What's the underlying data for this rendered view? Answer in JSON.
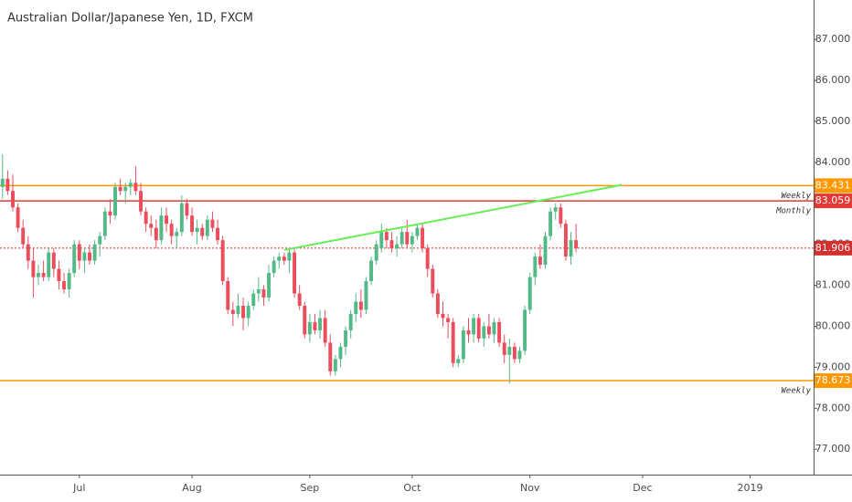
{
  "chart_data": {
    "type": "candlestick",
    "title": "Australian Dollar/Japanese Yen, 1D, FXCM",
    "up_color": "#53b987",
    "down_color": "#eb4d5c",
    "xlim": [
      -0.5,
      158.4
    ],
    "xticks": [
      {
        "value": 15,
        "label": "Jul"
      },
      {
        "value": 37,
        "label": "Aug"
      },
      {
        "value": 60,
        "label": "Sep"
      },
      {
        "value": 80,
        "label": "Oct"
      },
      {
        "value": 103,
        "label": "Nov"
      },
      {
        "value": 125,
        "label": "Dec"
      },
      {
        "value": 146,
        "label": "2019"
      }
    ],
    "ylim": [
      76.38,
      87.96
    ],
    "yticks": [
      {
        "value": 77,
        "label": "77.000"
      },
      {
        "value": 78,
        "label": "78.000"
      },
      {
        "value": 79,
        "label": "79.000"
      },
      {
        "value": 80,
        "label": "80.000"
      },
      {
        "value": 81,
        "label": "81.000"
      },
      {
        "value": 82,
        "label": "82.000"
      },
      {
        "value": 83,
        "label": "83.000"
      },
      {
        "value": 84,
        "label": "84.000"
      },
      {
        "value": 85,
        "label": "85.000"
      },
      {
        "value": 86,
        "label": "86.000"
      },
      {
        "value": 87,
        "label": "87.000"
      }
    ],
    "open": [
      83.4,
      83.6,
      83.3,
      82.9,
      82.4,
      82.0,
      81.6,
      81.2,
      81.3,
      81.2,
      81.8,
      81.4,
      81.1,
      80.9,
      81.3,
      82.0,
      81.6,
      81.8,
      81.6,
      82.0,
      82.2,
      82.8,
      82.7,
      83.4,
      83.3,
      83.4,
      83.5,
      83.3,
      82.8,
      82.5,
      82.4,
      82.1,
      82.7,
      82.5,
      82.2,
      82.3,
      83.0,
      82.7,
      82.3,
      82.4,
      82.2,
      82.6,
      82.4,
      82.1,
      81.1,
      80.4,
      80.3,
      80.5,
      80.2,
      80.5,
      80.8,
      80.9,
      80.7,
      81.3,
      81.6,
      81.7,
      81.6,
      81.8,
      80.8,
      80.5,
      79.8,
      80.1,
      79.9,
      80.2,
      79.6,
      78.9,
      79.2,
      79.5,
      79.9,
      80.3,
      80.6,
      80.4,
      81.1,
      81.6,
      81.9,
      82.3,
      82.1,
      81.9,
      82.0,
      82.3,
      82.0,
      82.2,
      82.4,
      81.9,
      81.4,
      80.8,
      80.3,
      80.2,
      80.1,
      79.1,
      79.2,
      79.9,
      79.8,
      80.2,
      79.7,
      80.0,
      79.8,
      80.1,
      79.6,
      79.3,
      79.5,
      79.2,
      79.4,
      80.4,
      81.2,
      81.7,
      81.5,
      82.2,
      82.8,
      82.9,
      82.5,
      81.7,
      82.1
    ],
    "high": [
      84.2,
      83.8,
      83.7,
      83.0,
      82.6,
      82.2,
      81.9,
      81.5,
      81.6,
      81.9,
      81.9,
      81.6,
      81.3,
      81.4,
      82.1,
      82.1,
      81.9,
      82.0,
      82.1,
      82.3,
      82.9,
      83.1,
      83.5,
      83.6,
      83.5,
      83.6,
      83.9,
      83.5,
      82.9,
      82.7,
      82.6,
      82.9,
      82.9,
      82.6,
      82.4,
      83.2,
      83.1,
      82.9,
      82.6,
      82.5,
      82.7,
      82.8,
      82.6,
      82.2,
      81.2,
      80.6,
      80.8,
      80.7,
      80.6,
      80.9,
      81.2,
      81.0,
      81.5,
      81.7,
      81.8,
      81.8,
      81.9,
      81.9,
      81.0,
      80.6,
      80.3,
      80.3,
      80.4,
      80.4,
      79.8,
      79.3,
      79.6,
      80.0,
      80.4,
      80.8,
      80.9,
      81.2,
      81.7,
      82.1,
      82.5,
      82.4,
      82.3,
      82.2,
      82.4,
      82.6,
      82.3,
      82.5,
      82.5,
      82.0,
      81.5,
      80.9,
      80.6,
      80.3,
      80.2,
      79.3,
      80.0,
      80.2,
      80.3,
      80.3,
      80.1,
      80.3,
      80.2,
      80.2,
      79.8,
      79.7,
      79.6,
      79.5,
      80.5,
      81.3,
      81.8,
      82.0,
      82.3,
      82.9,
      83.0,
      83.0,
      82.6,
      82.3,
      82.5
    ],
    "low": [
      83.1,
      83.2,
      82.8,
      82.3,
      81.9,
      81.4,
      80.7,
      81.0,
      81.1,
      81.1,
      81.2,
      80.9,
      80.8,
      80.7,
      81.2,
      81.4,
      81.3,
      81.5,
      81.5,
      81.7,
      82.1,
      82.5,
      82.6,
      83.2,
      83.0,
      83.2,
      83.2,
      82.7,
      82.3,
      82.2,
      81.9,
      82.0,
      82.3,
      82.0,
      81.9,
      82.2,
      82.6,
      82.2,
      82.0,
      82.1,
      82.1,
      82.3,
      82.0,
      81.0,
      80.3,
      80.0,
      80.2,
      79.9,
      80.0,
      80.4,
      80.6,
      80.5,
      80.6,
      81.2,
      81.4,
      81.5,
      81.3,
      80.7,
      80.4,
      79.7,
      79.6,
      79.8,
      79.7,
      79.5,
      78.8,
      78.8,
      79.0,
      79.3,
      79.7,
      80.1,
      80.2,
      80.3,
      81.0,
      81.5,
      81.8,
      81.9,
      81.8,
      81.7,
      81.9,
      81.9,
      81.8,
      82.1,
      81.8,
      81.2,
      80.7,
      80.2,
      80.0,
      79.7,
      79.0,
      79.0,
      79.1,
      79.6,
      79.6,
      79.6,
      79.5,
      79.7,
      79.6,
      79.5,
      79.1,
      78.6,
      79.1,
      79.1,
      79.3,
      80.3,
      81.0,
      81.4,
      81.4,
      82.1,
      82.6,
      82.4,
      81.6,
      81.5,
      81.8
    ],
    "close": [
      83.6,
      83.3,
      82.9,
      82.4,
      82.0,
      81.6,
      81.2,
      81.3,
      81.2,
      81.8,
      81.4,
      81.1,
      80.9,
      81.3,
      82.0,
      81.6,
      81.8,
      81.6,
      82.0,
      82.2,
      82.8,
      82.7,
      83.4,
      83.3,
      83.4,
      83.5,
      83.3,
      82.8,
      82.5,
      82.4,
      82.1,
      82.7,
      82.5,
      82.2,
      82.3,
      83.0,
      82.7,
      82.3,
      82.4,
      82.2,
      82.6,
      82.4,
      82.1,
      81.1,
      80.4,
      80.3,
      80.5,
      80.2,
      80.5,
      80.8,
      80.9,
      80.7,
      81.3,
      81.6,
      81.7,
      81.6,
      81.8,
      80.8,
      80.5,
      79.8,
      80.1,
      79.9,
      80.2,
      79.6,
      78.9,
      79.2,
      79.5,
      79.9,
      80.3,
      80.6,
      80.4,
      81.1,
      81.6,
      82.0,
      82.3,
      82.1,
      81.9,
      82.0,
      82.3,
      82.0,
      82.2,
      82.4,
      81.9,
      81.4,
      80.8,
      80.3,
      80.2,
      80.1,
      79.1,
      79.2,
      79.9,
      79.8,
      80.2,
      79.7,
      80.0,
      79.8,
      80.1,
      79.6,
      79.3,
      79.5,
      79.2,
      79.4,
      80.4,
      81.2,
      81.7,
      81.5,
      82.2,
      82.8,
      82.9,
      82.5,
      81.7,
      82.1,
      81.906
    ],
    "levels": [
      {
        "value": 83.431,
        "color": "#ff9800",
        "style": "solid",
        "note": "Weekly"
      },
      {
        "value": 83.059,
        "color": "#e53935",
        "style": "solid",
        "note": "Monthly"
      },
      {
        "value": 81.906,
        "color": "#d32f2f",
        "style": "dotted"
      },
      {
        "value": 78.673,
        "color": "#ff9800",
        "style": "solid",
        "note": "Weekly"
      }
    ],
    "trendline": {
      "x": [
        55,
        121
      ],
      "y": [
        81.86,
        83.45
      ],
      "color": "#66ee55"
    }
  }
}
